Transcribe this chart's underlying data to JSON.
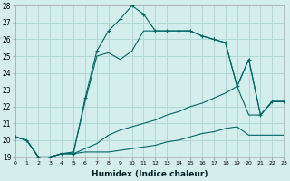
{
  "xlabel": "Humidex (Indice chaleur)",
  "bg_color": "#d4eeec",
  "grid_color": "#b0d8d4",
  "line_color": "#006666",
  "xlim": [
    0,
    23
  ],
  "ylim": [
    19,
    28
  ],
  "xticks": [
    0,
    1,
    2,
    3,
    4,
    5,
    6,
    7,
    8,
    9,
    10,
    11,
    12,
    13,
    14,
    15,
    16,
    17,
    18,
    19,
    20,
    21,
    22,
    23
  ],
  "yticks": [
    19,
    20,
    21,
    22,
    23,
    24,
    25,
    26,
    27,
    28
  ],
  "series": [
    [
      20.2,
      20.0,
      19.0,
      19.0,
      19.2,
      19.2,
      19.3,
      19.3,
      19.3,
      19.4,
      19.5,
      19.6,
      19.7,
      19.9,
      20.0,
      20.2,
      20.4,
      20.5,
      20.7,
      20.8,
      20.3,
      20.3,
      20.3,
      20.3
    ],
    [
      20.2,
      20.0,
      19.0,
      19.0,
      19.2,
      19.2,
      19.5,
      19.8,
      20.3,
      20.6,
      20.8,
      21.0,
      21.2,
      21.5,
      21.7,
      22.0,
      22.2,
      22.5,
      22.8,
      23.2,
      21.5,
      21.5,
      22.3,
      22.3
    ],
    [
      20.2,
      20.0,
      19.0,
      19.0,
      19.2,
      19.3,
      22.3,
      25.0,
      25.2,
      24.8,
      25.3,
      26.5,
      26.5,
      26.5,
      26.5,
      26.5,
      26.2,
      26.0,
      25.8,
      23.2,
      24.8,
      21.5,
      22.3,
      22.3
    ],
    [
      20.2,
      20.0,
      19.0,
      19.0,
      19.2,
      19.2,
      22.5,
      25.3,
      26.5,
      27.2,
      28.0,
      27.5,
      26.5,
      26.5,
      26.5,
      26.5,
      26.2,
      26.0,
      25.8,
      23.2,
      24.8,
      21.5,
      22.3,
      22.3
    ]
  ],
  "has_markers": [
    false,
    false,
    false,
    true
  ]
}
